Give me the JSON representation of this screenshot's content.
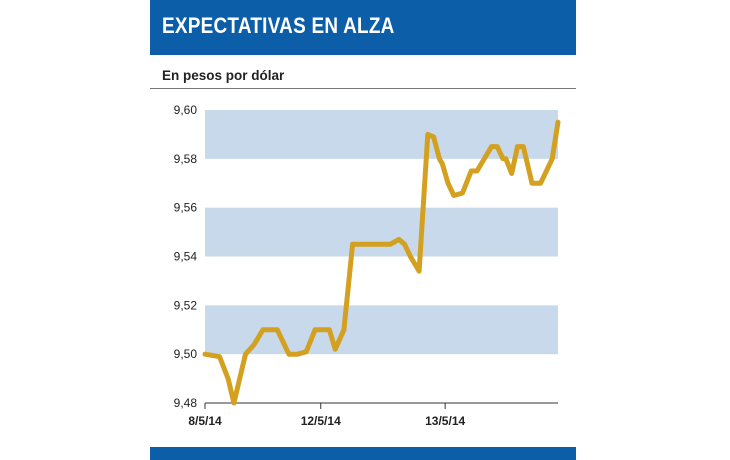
{
  "header": {
    "title": "EXPECTATIVAS EN ALZA"
  },
  "colors": {
    "header_bg": "#0c5ea8",
    "band": "#c7d9ea",
    "line": "#d4a020"
  },
  "chart_data": {
    "type": "line",
    "title": "EXPECTATIVAS EN ALZA",
    "subtitle": "En pesos por dólar",
    "xlabel": "",
    "ylabel": "",
    "ylim": [
      9.48,
      9.6
    ],
    "y_ticks": [
      "9,48",
      "9,50",
      "9,52",
      "9,54",
      "9,56",
      "9,58",
      "9,60"
    ],
    "y_tick_values": [
      9.48,
      9.5,
      9.52,
      9.54,
      9.56,
      9.58,
      9.6
    ],
    "x_ticks": [
      "8/5/14",
      "12/5/14",
      "13/5/14"
    ],
    "x_tick_positions": [
      0,
      40,
      83
    ],
    "x_range": [
      0,
      122
    ],
    "grid": "alternating horizontal bands",
    "series": [
      {
        "x": [
          0,
          5,
          8,
          10,
          12,
          14,
          17,
          20,
          22,
          25,
          29,
          32,
          35,
          38,
          40,
          43,
          45,
          48,
          51,
          53,
          55,
          58,
          61,
          64,
          67,
          69,
          71,
          74,
          77,
          79,
          81,
          82,
          84,
          86,
          89,
          92,
          94,
          99,
          101,
          103,
          104,
          106,
          108,
          110,
          113,
          116,
          120,
          122
        ],
        "y": [
          9.5,
          9.499,
          9.49,
          9.48,
          9.49,
          9.5,
          9.504,
          9.51,
          9.51,
          9.51,
          9.5,
          9.5,
          9.501,
          9.51,
          9.51,
          9.51,
          9.502,
          9.51,
          9.545,
          9.545,
          9.545,
          9.545,
          9.545,
          9.545,
          9.547,
          9.545,
          9.54,
          9.534,
          9.59,
          9.589,
          9.58,
          9.578,
          9.57,
          9.565,
          9.566,
          9.575,
          9.575,
          9.585,
          9.585,
          9.58,
          9.58,
          9.574,
          9.585,
          9.585,
          9.57,
          9.57,
          9.58,
          9.595
        ]
      }
    ]
  }
}
